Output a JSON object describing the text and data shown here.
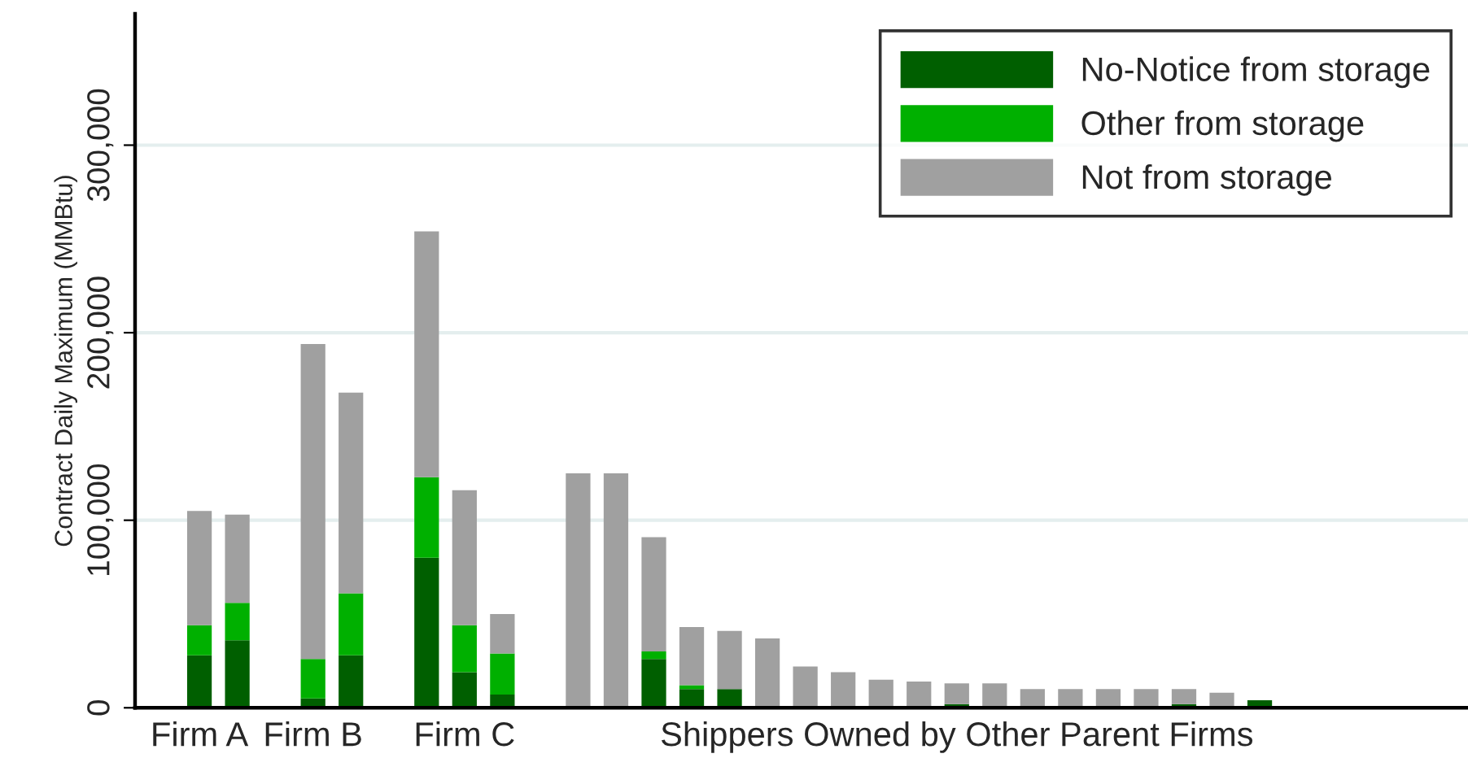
{
  "chart_data": {
    "type": "bar",
    "stacked": true,
    "ylabel": "Contract Daily Maximum (MMBtu)",
    "categories": [
      "Firm A",
      null,
      null,
      "Firm B",
      null,
      null,
      null,
      "Firm C",
      null,
      null,
      null,
      null,
      null,
      null,
      null,
      null,
      null,
      null,
      null,
      null,
      "Shippers Owned by Other Parent Firms",
      null,
      null,
      null,
      null,
      null,
      null,
      null,
      null,
      null,
      null,
      null
    ],
    "ylim": [
      0,
      370000
    ],
    "yticks": [
      {
        "value": 0,
        "label": "0"
      },
      {
        "value": 100000,
        "label": "100,000"
      },
      {
        "value": 200000,
        "label": "200,000"
      },
      {
        "value": 300000,
        "label": "300,000"
      }
    ],
    "grid": "y",
    "legend": "top right",
    "series": [
      {
        "name": "No-Notice from storage",
        "color": "#005f00",
        "values": [
          28000,
          36000,
          null,
          5000,
          28000,
          null,
          80000,
          19000,
          7000,
          null,
          null,
          null,
          26000,
          10000,
          10000,
          null,
          null,
          null,
          null,
          null,
          2000,
          null,
          null,
          null,
          null,
          null,
          2000,
          null,
          4000,
          null,
          null,
          null
        ]
      },
      {
        "name": "Other from storage",
        "color": "#00b000",
        "values": [
          16000,
          20000,
          null,
          21000,
          33000,
          null,
          43000,
          25000,
          22000,
          null,
          null,
          null,
          4000,
          2000,
          null,
          null,
          null,
          null,
          null,
          null,
          null,
          null,
          null,
          null,
          null,
          null,
          null,
          1000,
          null,
          1000,
          null,
          null
        ]
      },
      {
        "name": "Not from storage",
        "color": "#a0a0a0",
        "values": [
          61000,
          47000,
          null,
          168000,
          107000,
          null,
          131000,
          72000,
          21000,
          null,
          125000,
          125000,
          61000,
          31000,
          31000,
          37000,
          22000,
          19000,
          15000,
          14000,
          11000,
          13000,
          10000,
          10000,
          10000,
          10000,
          8000,
          7000,
          null,
          null,
          1000,
          1000
        ]
      }
    ]
  }
}
